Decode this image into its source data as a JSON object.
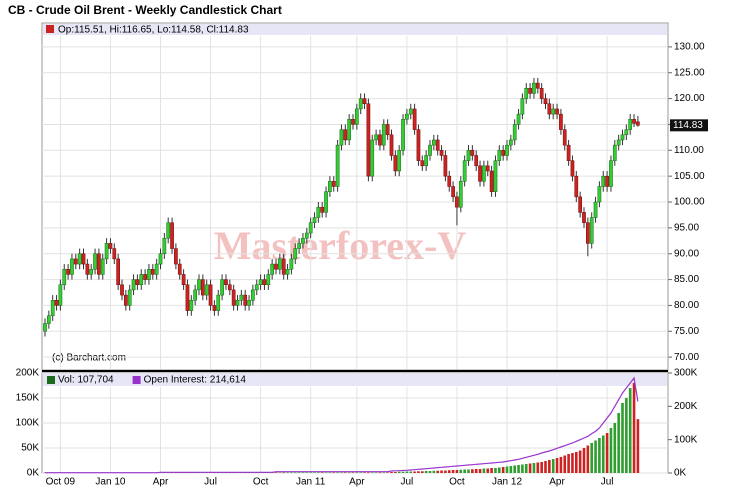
{
  "chart_data": [
    {
      "type": "candlestick",
      "title": "CB - Crude Oil Brent - Weekly Candlestick Chart",
      "legend": "Op:115.51, Hi:116.65, Lo:114.58, Cl:114.83",
      "last_label": "114.83",
      "watermark": "Masterforex-V",
      "source": "(c) Barchart.com",
      "up_color": "#33cc33",
      "down_color": "#cc2222",
      "grid": true,
      "ylim": [
        67.9,
        132.3
      ],
      "yticks": [
        {
          "value": 70,
          "label": "70.00"
        },
        {
          "value": 75,
          "label": "75.00"
        },
        {
          "value": 80,
          "label": "80.00"
        },
        {
          "value": 85,
          "label": "85.00"
        },
        {
          "value": 90,
          "label": "90.00"
        },
        {
          "value": 95,
          "label": "95.00"
        },
        {
          "value": 100,
          "label": "100.00"
        },
        {
          "value": 105,
          "label": "105.00"
        },
        {
          "value": 110,
          "label": "110.00"
        },
        {
          "value": 115,
          "label": "115.00"
        },
        {
          "value": 120,
          "label": "120.00"
        },
        {
          "value": 125,
          "label": "125.00"
        },
        {
          "value": 130,
          "label": "130.00"
        }
      ],
      "open": [
        75,
        76.5,
        78,
        81,
        80,
        84,
        87,
        86,
        89,
        88,
        90,
        88,
        86,
        87,
        90,
        86,
        89,
        92,
        91,
        89,
        84,
        82,
        80,
        83,
        85,
        84,
        86,
        85,
        87,
        86,
        88,
        90,
        93,
        96,
        91,
        88,
        86,
        84,
        79,
        81,
        83,
        85,
        82,
        84,
        80,
        79,
        82,
        85,
        84,
        83,
        80,
        81,
        82,
        80,
        81,
        83,
        84,
        85,
        84,
        86,
        88,
        87,
        89,
        86,
        87,
        89,
        91,
        92,
        93,
        94,
        96,
        97,
        99,
        98,
        102,
        104,
        103,
        111,
        114,
        112,
        116,
        115,
        118,
        120,
        119,
        105,
        112,
        113,
        111,
        115,
        113,
        109,
        106,
        110,
        116,
        117,
        118,
        114,
        108,
        107,
        109,
        111,
        112,
        110,
        109,
        105,
        103,
        101,
        99,
        104,
        108,
        110,
        109,
        107,
        104,
        107,
        106,
        102,
        108,
        110,
        109,
        111,
        112,
        115,
        117,
        120,
        122,
        121,
        123,
        122,
        120,
        119,
        117,
        118,
        117,
        114,
        111,
        108,
        105,
        101,
        98,
        96,
        92,
        97,
        100,
        103,
        105,
        103,
        108,
        111,
        112,
        113,
        114,
        116,
        115.51
      ],
      "high": [
        77.5,
        79,
        82,
        82,
        85,
        88,
        88,
        90,
        90,
        91,
        91,
        89,
        88,
        91,
        91,
        90,
        93,
        93,
        92,
        90,
        85,
        83,
        84,
        86,
        86,
        87,
        87,
        88,
        88,
        89,
        91,
        94,
        97,
        97,
        92,
        89,
        87,
        85,
        82,
        84,
        86,
        86,
        85,
        85,
        81,
        83,
        86,
        86,
        85,
        84,
        82,
        83,
        83,
        82,
        84,
        85,
        86,
        86,
        87,
        89,
        89,
        90,
        90,
        88,
        90,
        92,
        93,
        94,
        95,
        97,
        98,
        100,
        100,
        103,
        105,
        105,
        112,
        115,
        115,
        117,
        117,
        119,
        121,
        121,
        120,
        113,
        114,
        114,
        116,
        116,
        114,
        110,
        111,
        117,
        118,
        119,
        119,
        115,
        109,
        110,
        112,
        113,
        113,
        111,
        110,
        106,
        104,
        102,
        105,
        109,
        111,
        111,
        110,
        108,
        108,
        108,
        107,
        109,
        111,
        111,
        112,
        113,
        116,
        118,
        121,
        123,
        123,
        124,
        124,
        123,
        121,
        120,
        119,
        119,
        118,
        115,
        112,
        109,
        106,
        102,
        99,
        97,
        98,
        101,
        104,
        106,
        106,
        109,
        112,
        113,
        114,
        115,
        117,
        117,
        116.65
      ],
      "low": [
        74,
        75.5,
        77,
        79,
        79,
        83,
        85,
        85,
        87,
        87,
        87,
        85,
        85,
        86,
        85,
        85,
        88,
        90,
        88,
        83,
        81,
        79,
        79,
        82,
        83,
        83,
        84,
        84,
        85,
        85,
        87,
        89,
        92,
        90,
        87,
        85,
        83,
        78,
        78,
        80,
        82,
        81,
        81,
        79,
        78,
        78,
        81,
        83,
        82,
        79,
        79,
        80,
        79,
        79,
        80,
        82,
        83,
        83,
        83,
        85,
        86,
        86,
        85,
        85,
        86,
        88,
        90,
        91,
        92,
        93,
        95,
        96,
        97,
        97,
        101,
        102,
        102,
        110,
        111,
        111,
        114,
        114,
        117,
        118,
        104,
        104,
        111,
        110,
        110,
        112,
        108,
        105,
        105,
        109,
        115,
        116,
        113,
        107,
        106,
        106,
        108,
        110,
        109,
        108,
        104,
        102,
        100,
        95.5,
        98,
        103,
        107,
        108,
        106,
        103,
        103,
        105,
        101,
        101,
        107,
        108,
        108,
        110,
        111,
        114,
        116,
        119,
        120,
        120,
        121,
        119,
        118,
        116,
        116,
        116,
        113,
        110,
        107,
        104,
        100,
        97,
        95,
        89.5,
        91,
        96,
        99,
        102,
        102,
        102,
        107,
        110,
        111,
        112,
        113,
        114.5,
        114.58
      ],
      "close": [
        76.5,
        78,
        81,
        80,
        84,
        87,
        86,
        89,
        88,
        90,
        88,
        86,
        87,
        90,
        86,
        89,
        92,
        91,
        89,
        84,
        82,
        80,
        83,
        85,
        84,
        86,
        85,
        87,
        86,
        88,
        90,
        93,
        96,
        91,
        88,
        86,
        84,
        79,
        81,
        83,
        85,
        82,
        84,
        80,
        79,
        82,
        85,
        84,
        83,
        80,
        81,
        82,
        80,
        81,
        83,
        84,
        85,
        84,
        86,
        88,
        87,
        89,
        86,
        87,
        89,
        91,
        92,
        93,
        94,
        96,
        97,
        99,
        98,
        102,
        104,
        103,
        111,
        114,
        112,
        116,
        115,
        118,
        120,
        119,
        105,
        112,
        113,
        111,
        115,
        113,
        109,
        106,
        110,
        116,
        117,
        118,
        114,
        108,
        107,
        109,
        111,
        112,
        110,
        109,
        105,
        103,
        101,
        99,
        104,
        108,
        110,
        109,
        107,
        104,
        107,
        106,
        102,
        108,
        110,
        109,
        111,
        112,
        115,
        117,
        120,
        122,
        121,
        123,
        122,
        120,
        119,
        117,
        118,
        117,
        114,
        111,
        108,
        105,
        101,
        98,
        96,
        92,
        97,
        100,
        103,
        105,
        103,
        108,
        111,
        112,
        113,
        114,
        116,
        115.2,
        114.83
      ]
    },
    {
      "type": "bar",
      "categories": [
        null,
        null,
        null,
        null,
        "Oct 09",
        null,
        null,
        null,
        null,
        null,
        null,
        null,
        null,
        null,
        null,
        null,
        null,
        "Jan 10",
        null,
        null,
        null,
        null,
        null,
        null,
        null,
        null,
        null,
        null,
        null,
        null,
        "Apr",
        null,
        null,
        null,
        null,
        null,
        null,
        null,
        null,
        null,
        null,
        null,
        null,
        "Jul",
        null,
        null,
        null,
        null,
        null,
        null,
        null,
        null,
        null,
        null,
        null,
        null,
        "Oct",
        null,
        null,
        null,
        null,
        null,
        null,
        null,
        null,
        null,
        null,
        null,
        null,
        "Jan 11",
        null,
        null,
        null,
        null,
        null,
        null,
        null,
        null,
        null,
        null,
        null,
        "Apr",
        null,
        null,
        null,
        null,
        null,
        null,
        null,
        null,
        null,
        null,
        null,
        null,
        "Jul",
        null,
        null,
        null,
        null,
        null,
        null,
        null,
        null,
        null,
        null,
        null,
        null,
        "Oct",
        null,
        null,
        null,
        null,
        null,
        null,
        null,
        null,
        null,
        null,
        null,
        null,
        "Jan 12",
        null,
        null,
        null,
        null,
        null,
        null,
        null,
        null,
        null,
        null,
        null,
        null,
        "Apr",
        null,
        null,
        null,
        null,
        null,
        null,
        null,
        null,
        null,
        null,
        null,
        null,
        "Jul",
        null,
        null,
        null,
        null,
        null,
        null,
        null,
        null
      ],
      "series": [
        {
          "name": "Vol: 107,704",
          "color": "#1e6b1e",
          "values": [
            1000,
            1000,
            1000,
            1000,
            1000,
            1000,
            1000,
            1000,
            1000,
            1000,
            1000,
            1000,
            1000,
            1000,
            1000,
            1000,
            1000,
            1000,
            1000,
            1000,
            1000,
            1000,
            1000,
            1000,
            1000,
            1000,
            1000,
            1000,
            1000,
            1000,
            1000,
            1000,
            1000,
            1000,
            1000,
            1000,
            1000,
            1000,
            1000,
            1000,
            1000,
            1000,
            1000,
            1000,
            1000,
            1000,
            1000,
            1000,
            1000,
            1000,
            1000,
            1000,
            1000,
            1000,
            1000,
            1000,
            1000,
            1000,
            1000,
            1000,
            1000,
            1000,
            1000,
            1000,
            1000,
            1000,
            1000,
            1000,
            1000,
            1000,
            1000,
            1000,
            1000,
            1000,
            1000,
            1000,
            1000,
            1000,
            1000,
            1000,
            1000,
            1000,
            1000,
            1000,
            1000,
            1000,
            1000,
            1000,
            1000,
            1000,
            2000,
            2000,
            2500,
            2500,
            3000,
            3000,
            3000,
            3500,
            3500,
            4000,
            4000,
            4500,
            4500,
            5000,
            5000,
            5500,
            6000,
            6000,
            6500,
            7000,
            7000,
            7500,
            8000,
            8000,
            9000,
            9000,
            10000,
            10000,
            11000,
            12000,
            13000,
            14000,
            15000,
            16000,
            17000,
            18000,
            19000,
            20000,
            21000,
            22000,
            24000,
            26000,
            28000,
            30000,
            32000,
            35000,
            38000,
            40000,
            42000,
            45000,
            50000,
            55000,
            60000,
            65000,
            70000,
            75000,
            80000,
            90000,
            100000,
            120000,
            140000,
            150000,
            170000,
            180000,
            107704
          ]
        },
        {
          "name": "Open Interest: 214,614",
          "color": "#9933cc",
          "type": "line",
          "axis": "y2",
          "values": [
            1000,
            1000,
            1000,
            1000,
            1000,
            1000,
            1000,
            1000,
            1000,
            1000,
            1000,
            1000,
            1000,
            1000,
            1000,
            1000,
            1000,
            1000,
            1000,
            1000,
            1000,
            1000,
            1000,
            1000,
            1000,
            1000,
            1000,
            1000,
            1000,
            1000,
            2000,
            2000,
            2000,
            2000,
            2000,
            2000,
            2000,
            2000,
            2000,
            2000,
            2000,
            2000,
            2000,
            2000,
            2000,
            2000,
            2000,
            2000,
            2000,
            2000,
            2000,
            2000,
            2000,
            2000,
            2000,
            2000,
            2000,
            2000,
            2000,
            2000,
            4000,
            4000,
            4000,
            4000,
            4000,
            4000,
            4000,
            4000,
            4000,
            4000,
            4000,
            4000,
            4000,
            4000,
            4000,
            4000,
            4000,
            4000,
            4000,
            4000,
            4000,
            4000,
            4000,
            4000,
            4000,
            4000,
            4000,
            4000,
            4000,
            4000,
            6000,
            6500,
            7000,
            7500,
            8000,
            9000,
            10000,
            11000,
            12000,
            13000,
            14000,
            15000,
            16000,
            17000,
            18000,
            19000,
            20000,
            21000,
            22000,
            23000,
            24000,
            25000,
            26000,
            27000,
            28000,
            29000,
            30000,
            31000,
            32000,
            33000,
            35000,
            37000,
            39000,
            41000,
            44000,
            47000,
            50000,
            53000,
            56000,
            60000,
            63000,
            66000,
            70000,
            74000,
            78000,
            82000,
            86000,
            90000,
            95000,
            100000,
            105000,
            110000,
            118000,
            125000,
            135000,
            150000,
            165000,
            180000,
            200000,
            220000,
            240000,
            255000,
            270000,
            285000,
            214614
          ]
        }
      ],
      "ylim": [
        0,
        200000
      ],
      "yticks": [
        {
          "value": 0,
          "label": "0K"
        },
        {
          "value": 50000,
          "label": "50K"
        },
        {
          "value": 100000,
          "label": "100K"
        },
        {
          "value": 150000,
          "label": "150K"
        },
        {
          "value": 200000,
          "label": "200K"
        }
      ],
      "y2lim": [
        0,
        300000
      ],
      "y2ticks": [
        {
          "value": 0,
          "label": "0K"
        },
        {
          "value": 100000,
          "label": "100K"
        },
        {
          "value": 200000,
          "label": "200K"
        },
        {
          "value": 300000,
          "label": "300K"
        }
      ]
    }
  ]
}
